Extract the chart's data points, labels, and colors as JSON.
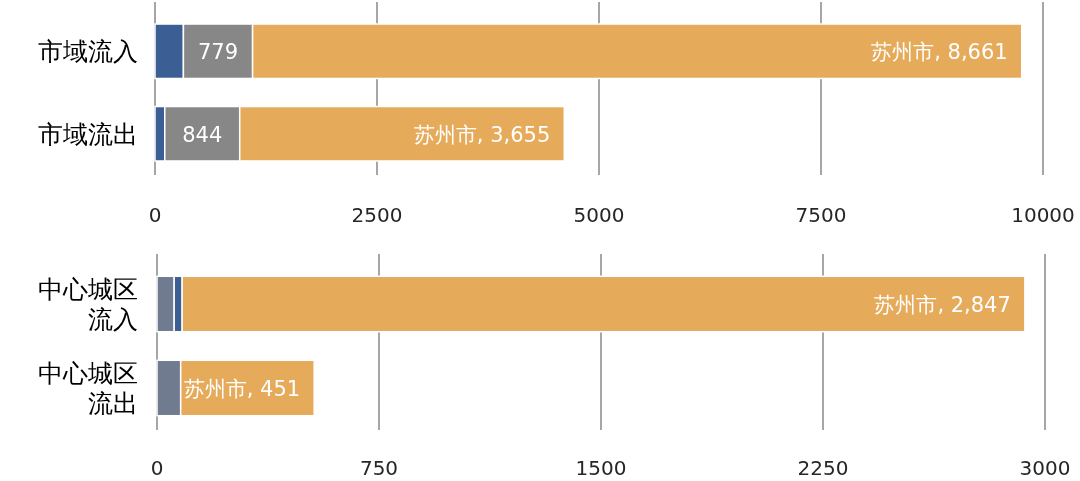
{
  "chart_data": [
    {
      "type": "bar",
      "orientation": "horizontal",
      "stacked": true,
      "categories": [
        "市域流入",
        "市域流出"
      ],
      "series": [
        {
          "color": "#3b5f94",
          "values": [
            320,
            110
          ]
        },
        {
          "color": "#878787",
          "values": [
            779,
            844
          ],
          "value_labels": [
            "779",
            "844"
          ]
        },
        {
          "color": "#e6ab5a",
          "values": [
            8661,
            3655
          ],
          "value_labels": [
            "苏州市, 8,661",
            "苏州市, 3,655"
          ]
        }
      ],
      "xlim": [
        0,
        10000
      ],
      "xticks": [
        0,
        2500,
        5000,
        7500,
        10000
      ],
      "grid": "x"
    },
    {
      "type": "bar",
      "orientation": "horizontal",
      "stacked": true,
      "categories": [
        "中心城区流入",
        "中心城区流出"
      ],
      "series": [
        {
          "color": "#707b90",
          "values": [
            58,
            80
          ]
        },
        {
          "color": "#3b5f94",
          "values": [
            27,
            null
          ]
        },
        {
          "color": "#e6ab5a",
          "values": [
            2847,
            451
          ],
          "value_labels": [
            "苏州市, 2,847",
            "苏州市, 451"
          ]
        }
      ],
      "xlim": [
        0,
        3000
      ],
      "xticks": [
        0,
        750,
        1500,
        2250,
        3000
      ],
      "grid": "x"
    }
  ]
}
